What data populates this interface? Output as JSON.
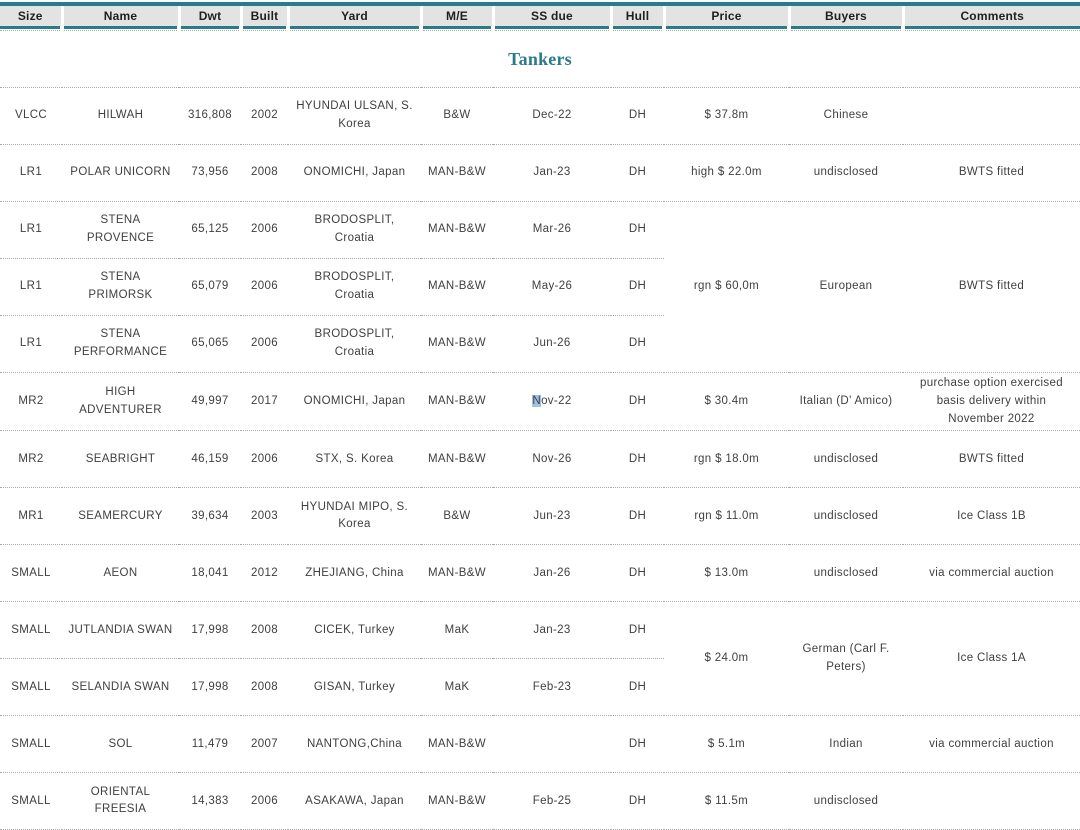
{
  "title": "Tankers",
  "theme": {
    "accent_teal": "#2A7B8A",
    "header_bg": "#E3E3E3",
    "text_color": "#3F3F3F",
    "header_text": "#1F1F1F",
    "dotted_line": "#ABABAB",
    "highlight_blue": "#9DC3E6"
  },
  "columns": [
    {
      "key": "size",
      "label": "Size"
    },
    {
      "key": "name",
      "label": "Name"
    },
    {
      "key": "dwt",
      "label": "Dwt"
    },
    {
      "key": "built",
      "label": "Built"
    },
    {
      "key": "yard",
      "label": "Yard"
    },
    {
      "key": "me",
      "label": "M/E"
    },
    {
      "key": "ss_due",
      "label": "SS due"
    },
    {
      "key": "hull",
      "label": "Hull"
    },
    {
      "key": "price",
      "label": "Price"
    },
    {
      "key": "buyers",
      "label": "Buyers"
    },
    {
      "key": "comments",
      "label": "Comments"
    }
  ],
  "rows": [
    {
      "size": "VLCC",
      "name": "HILWAH",
      "dwt": "316,808",
      "built": "2002",
      "yard": "HYUNDAI ULSAN, S. Korea",
      "me": "B&W",
      "ss_due": "Dec-22",
      "hull": "DH",
      "price": "$ 37.8m",
      "buyers": "Chinese",
      "comments": ""
    },
    {
      "size": "LR1",
      "name": "POLAR UNICORN",
      "dwt": "73,956",
      "built": "2008",
      "yard": "ONOMICHI, Japan",
      "me": "MAN-B&W",
      "ss_due": "Jan-23",
      "hull": "DH",
      "price": "high $ 22.0m",
      "buyers": "undisclosed",
      "comments": "BWTS fitted"
    },
    {
      "size": "LR1",
      "name": "STENA PROVENCE",
      "dwt": "65,125",
      "built": "2006",
      "yard": "BRODOSPLIT, Croatia",
      "me": "MAN-B&W",
      "ss_due": "Mar-26",
      "hull": "DH",
      "merge": {
        "span": 3,
        "price": "rgn $ 60,0m",
        "buyers": "European",
        "comments": "BWTS fitted"
      }
    },
    {
      "size": "LR1",
      "name": "STENA PRIMORSK",
      "dwt": "65,079",
      "built": "2006",
      "yard": "BRODOSPLIT, Croatia",
      "me": "MAN-B&W",
      "ss_due": "May-26",
      "hull": "DH",
      "merged_into_above": true
    },
    {
      "size": "LR1",
      "name": "STENA PERFORMANCE",
      "dwt": "65,065",
      "built": "2006",
      "yard": "BRODOSPLIT, Croatia",
      "me": "MAN-B&W",
      "ss_due": "Jun-26",
      "hull": "DH",
      "merged_into_above": true
    },
    {
      "size": "MR2",
      "name": "HIGH ADVENTURER",
      "dwt": "49,997",
      "built": "2017",
      "yard": "ONOMICHI, Japan",
      "me": "MAN-B&W",
      "ss_due": "Nov-22",
      "ss_due_head": "N",
      "ss_due_tail": "ov-22",
      "hull": "DH",
      "price": "$ 30.4m",
      "buyers": "Italian (D' Amico)",
      "comments": "purchase option exercised basis delivery within November 2022"
    },
    {
      "size": "MR2",
      "name": "SEABRIGHT",
      "dwt": "46,159",
      "built": "2006",
      "yard": "STX, S. Korea",
      "me": "MAN-B&W",
      "ss_due": "Nov-26",
      "hull": "DH",
      "price": "rgn $ 18.0m",
      "buyers": "undisclosed",
      "comments": "BWTS fitted"
    },
    {
      "size": "MR1",
      "name": "SEAMERCURY",
      "dwt": "39,634",
      "built": "2003",
      "yard": "HYUNDAI MIPO, S. Korea",
      "me": "B&W",
      "ss_due": "Jun-23",
      "hull": "DH",
      "price": "rgn $ 11.0m",
      "buyers": "undisclosed",
      "comments": "Ice Class 1B"
    },
    {
      "size": "SMALL",
      "name": "AEON",
      "dwt": "18,041",
      "built": "2012",
      "yard": "ZHEJIANG, China",
      "me": "MAN-B&W",
      "ss_due": "Jan-26",
      "hull": "DH",
      "price": "$ 13.0m",
      "buyers": "undisclosed",
      "comments": "via commercial auction"
    },
    {
      "size": "SMALL",
      "name": "JUTLANDIA SWAN",
      "dwt": "17,998",
      "built": "2008",
      "yard": "CICEK, Turkey",
      "me": "MaK",
      "ss_due": "Jan-23",
      "hull": "DH",
      "merge": {
        "span": 2,
        "price": "$ 24.0m",
        "buyers": "German (Carl F. Peters)",
        "comments": "Ice Class 1A"
      }
    },
    {
      "size": "SMALL",
      "name": "SELANDIA SWAN",
      "dwt": "17,998",
      "built": "2008",
      "yard": "GISAN, Turkey",
      "me": "MaK",
      "ss_due": "Feb-23",
      "hull": "DH",
      "merged_into_above": true
    },
    {
      "size": "SMALL",
      "name": "SOL",
      "dwt": "11,479",
      "built": "2007",
      "yard": "NANTONG,China",
      "me": "MAN-B&W",
      "ss_due": "",
      "hull": "DH",
      "price": "$ 5.1m",
      "buyers": "Indian",
      "comments": "via commercial auction"
    },
    {
      "size": "SMALL",
      "name": "ORIENTAL FREESIA",
      "dwt": "14,383",
      "built": "2006",
      "yard": "ASAKAWA, Japan",
      "me": "MAN-B&W",
      "ss_due": "Feb-25",
      "hull": "DH",
      "price": "$ 11.5m",
      "buyers": "undisclosed",
      "comments": ""
    }
  ]
}
